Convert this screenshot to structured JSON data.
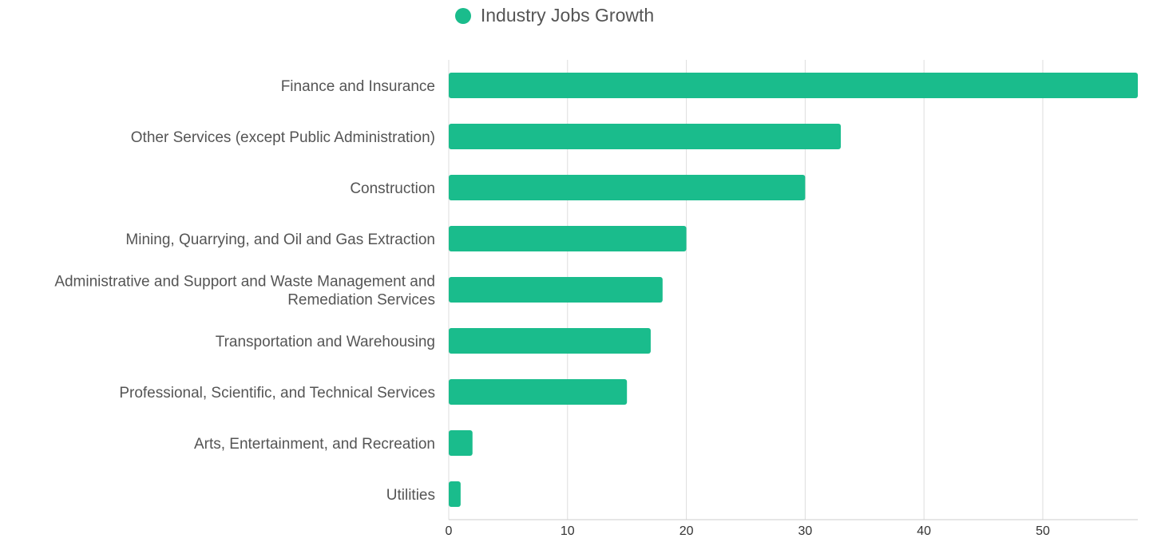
{
  "chart_data": {
    "type": "bar",
    "orientation": "horizontal",
    "categories": [
      "Finance and Insurance",
      "Other Services (except Public Administration)",
      "Construction",
      "Mining, Quarrying, and Oil and Gas Extraction",
      "Administrative and Support and Waste Management and Remediation Services",
      "Transportation and Warehousing",
      "Professional, Scientific, and Technical Services",
      "Arts, Entertainment, and Recreation",
      "Utilities"
    ],
    "category_label_lines": [
      [
        "Finance and Insurance"
      ],
      [
        "Other Services (except Public Administration)"
      ],
      [
        "Construction"
      ],
      [
        "Mining, Quarrying, and Oil and Gas Extraction"
      ],
      [
        "Administrative and Support and Waste Management and",
        "Remediation Services"
      ],
      [
        "Transportation and Warehousing"
      ],
      [
        "Professional, Scientific, and Technical Services"
      ],
      [
        "Arts, Entertainment, and Recreation"
      ],
      [
        "Utilities"
      ]
    ],
    "series": [
      {
        "name": "Industry Jobs Growth",
        "color": "#1abc8c",
        "values": [
          58,
          33,
          30,
          20,
          18,
          17,
          15,
          2,
          1
        ]
      }
    ],
    "xlim": [
      0,
      58
    ],
    "xticks": [
      0,
      10,
      20,
      30,
      40,
      50
    ],
    "grid": true,
    "legend_position": "top-center"
  },
  "colors": {
    "bar": "#1abc8c",
    "grid": "#dddddd",
    "text": "#555555"
  }
}
